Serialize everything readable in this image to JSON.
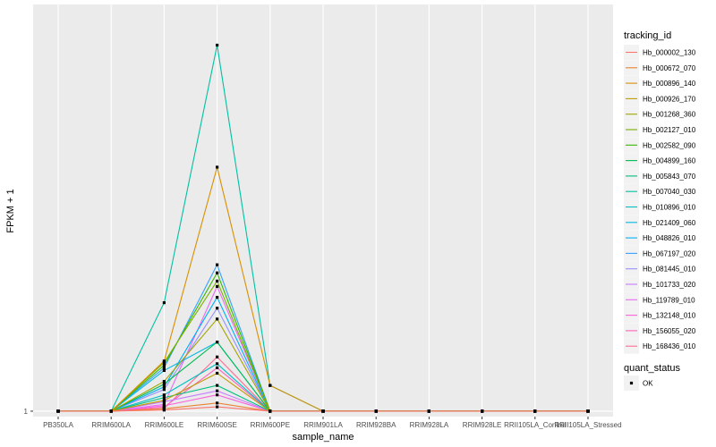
{
  "chart_data": {
    "type": "line",
    "xlabel": "sample_name",
    "ylabel": "FPKM + 1",
    "y_tick_labels": [
      "1"
    ],
    "categories": [
      "PB350LA",
      "RRIM600LA",
      "RRIM600LE",
      "RRIM600SE",
      "RRIM600PE",
      "RRIM901LA",
      "RRIM928BA",
      "RRIM928LA",
      "RRIM928LE",
      "RRII105LA_Control",
      "RRII105LA_Stressed"
    ],
    "legend_color_title": "tracking_id",
    "legend_shape_title": "quant_status",
    "legend_shape_entries": [
      "OK"
    ],
    "series": [
      {
        "name": "Hb_000002_130",
        "color": "#F8766D",
        "values": [
          0,
          0,
          0.4,
          1.6,
          0,
          0,
          0,
          0,
          0,
          0,
          0
        ]
      },
      {
        "name": "Hb_000672_070",
        "color": "#EA8331",
        "values": [
          0,
          0,
          0.9,
          3.0,
          0,
          0,
          0,
          0,
          0,
          0,
          0
        ]
      },
      {
        "name": "Hb_000896_140",
        "color": "#D89000",
        "values": [
          0,
          0,
          18.5,
          90,
          9.5,
          0,
          0,
          0,
          0,
          0,
          0
        ]
      },
      {
        "name": "Hb_000926_170",
        "color": "#C09B00",
        "values": [
          0,
          0,
          4.0,
          14.0,
          0,
          0,
          0,
          0,
          0,
          0,
          0
        ]
      },
      {
        "name": "Hb_001268_360",
        "color": "#A3A500",
        "values": [
          0,
          0,
          11.0,
          34.0,
          0,
          0,
          0,
          0,
          0,
          0,
          0
        ]
      },
      {
        "name": "Hb_002127_010",
        "color": "#7CAE00",
        "values": [
          0,
          0,
          18.0,
          48.0,
          0,
          0,
          0,
          0,
          0,
          0,
          0
        ]
      },
      {
        "name": "Hb_002582_090",
        "color": "#39B600",
        "values": [
          0,
          0,
          17.0,
          51.0,
          0,
          0,
          0,
          0,
          0,
          0,
          0
        ]
      },
      {
        "name": "Hb_004899_160",
        "color": "#00BB4E",
        "values": [
          0,
          0,
          10.0,
          25.5,
          0,
          0,
          0,
          0,
          0,
          0,
          0
        ]
      },
      {
        "name": "Hb_005843_070",
        "color": "#00BF7D",
        "values": [
          0,
          0,
          5.0,
          9.5,
          0,
          0,
          0,
          0,
          0,
          0,
          0
        ]
      },
      {
        "name": "Hb_007040_030",
        "color": "#00C1A3",
        "values": [
          0,
          0,
          40.0,
          135,
          9.5,
          0,
          0,
          0,
          0,
          0,
          0
        ]
      },
      {
        "name": "Hb_010896_010",
        "color": "#00BFC4",
        "values": [
          0,
          0,
          6.0,
          17.5,
          0,
          0,
          0,
          0,
          0,
          0,
          0
        ]
      },
      {
        "name": "Hb_021409_060",
        "color": "#00BAE0",
        "values": [
          0,
          0,
          15.0,
          25.5,
          0,
          0,
          0,
          0,
          0,
          0,
          0
        ]
      },
      {
        "name": "Hb_048826_010",
        "color": "#00B0F6",
        "values": [
          0,
          0,
          9.0,
          42.0,
          0,
          0,
          0,
          0,
          0,
          0,
          0
        ]
      },
      {
        "name": "Hb_067197_020",
        "color": "#35A2FF",
        "values": [
          0,
          0,
          16.0,
          54.0,
          0,
          0,
          0,
          0,
          0,
          0,
          0
        ]
      },
      {
        "name": "Hb_081445_010",
        "color": "#9590FF",
        "values": [
          0,
          0,
          8.0,
          38.0,
          0,
          0,
          0,
          0,
          0,
          0,
          0
        ]
      },
      {
        "name": "Hb_101733_020",
        "color": "#C77CFF",
        "values": [
          0,
          0,
          3.5,
          7.5,
          0,
          0,
          0,
          0,
          0,
          0,
          0
        ]
      },
      {
        "name": "Hb_119789_010",
        "color": "#E76BF3",
        "values": [
          0,
          0,
          2.5,
          46.0,
          0,
          0,
          0,
          0,
          0,
          0,
          0
        ]
      },
      {
        "name": "Hb_132148_010",
        "color": "#FA62DB",
        "values": [
          0,
          0,
          2.0,
          6.0,
          0,
          0,
          0,
          0,
          0,
          0,
          0
        ]
      },
      {
        "name": "Hb_156055_020",
        "color": "#FF62BC",
        "values": [
          0,
          0,
          1.5,
          16.0,
          0,
          0,
          0,
          0,
          0,
          0,
          0
        ]
      },
      {
        "name": "Hb_168436_010",
        "color": "#FF6C91",
        "values": [
          0,
          0,
          1.0,
          20.0,
          0,
          0,
          0,
          0,
          0,
          0,
          0
        ]
      }
    ],
    "ylim": [
      -2,
      150
    ],
    "grid": true,
    "legend_position": "right"
  }
}
